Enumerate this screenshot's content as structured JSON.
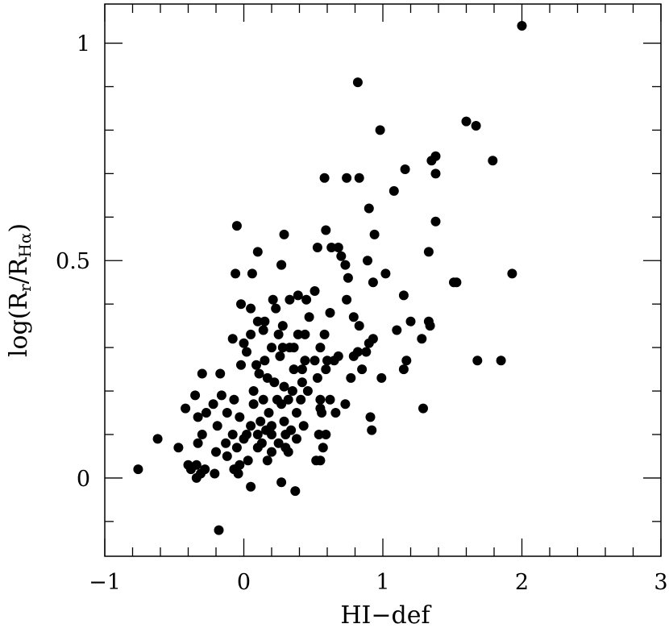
{
  "chart_data": {
    "type": "scatter",
    "xlabel": "HI−def",
    "ylabel": {
      "base": "log(R",
      "sub1": "r",
      "mid": "/R",
      "sub2": "Hα",
      "end": ")"
    },
    "xlim": [
      -1,
      3
    ],
    "ylim": [
      -0.18,
      1.09
    ],
    "x_ticks_major": [
      -1,
      0,
      1,
      2,
      3
    ],
    "x_tick_labels": [
      "−1",
      "0",
      "1",
      "2",
      "3"
    ],
    "y_ticks_major": [
      0,
      0.5,
      1
    ],
    "y_tick_labels": [
      "0",
      "0.5",
      "1"
    ],
    "grid": false,
    "series": [
      {
        "marker_color": "#000000",
        "points": [
          [
            2.0,
            1.04
          ],
          [
            0.82,
            0.91
          ],
          [
            0.98,
            0.8
          ],
          [
            1.6,
            0.82
          ],
          [
            1.67,
            0.81
          ],
          [
            1.38,
            0.74
          ],
          [
            1.35,
            0.73
          ],
          [
            1.79,
            0.73
          ],
          [
            1.38,
            0.7
          ],
          [
            1.16,
            0.71
          ],
          [
            0.58,
            0.69
          ],
          [
            0.74,
            0.69
          ],
          [
            0.83,
            0.69
          ],
          [
            1.08,
            0.66
          ],
          [
            0.9,
            0.62
          ],
          [
            1.38,
            0.59
          ],
          [
            -0.05,
            0.58
          ],
          [
            0.59,
            0.57
          ],
          [
            0.29,
            0.56
          ],
          [
            0.94,
            0.56
          ],
          [
            0.68,
            0.53
          ],
          [
            0.63,
            0.53
          ],
          [
            0.53,
            0.53
          ],
          [
            0.1,
            0.52
          ],
          [
            1.33,
            0.52
          ],
          [
            0.7,
            0.51
          ],
          [
            0.73,
            0.49
          ],
          [
            0.89,
            0.5
          ],
          [
            0.27,
            0.49
          ],
          [
            0.27,
            0.49
          ],
          [
            0.06,
            0.47
          ],
          [
            -0.06,
            0.47
          ],
          [
            1.02,
            0.47
          ],
          [
            1.93,
            0.47
          ],
          [
            0.75,
            0.46
          ],
          [
            0.93,
            0.45
          ],
          [
            1.51,
            0.45
          ],
          [
            1.53,
            0.45
          ],
          [
            0.51,
            0.43
          ],
          [
            0.39,
            0.42
          ],
          [
            0.21,
            0.41
          ],
          [
            0.33,
            0.41
          ],
          [
            0.45,
            0.41
          ],
          [
            0.74,
            0.41
          ],
          [
            1.15,
            0.42
          ],
          [
            -0.02,
            0.4
          ],
          [
            0.23,
            0.39
          ],
          [
            0.05,
            0.39
          ],
          [
            0.62,
            0.38
          ],
          [
            0.79,
            0.37
          ],
          [
            0.47,
            0.37
          ],
          [
            1.2,
            0.36
          ],
          [
            1.33,
            0.36
          ],
          [
            1.34,
            0.35
          ],
          [
            0.1,
            0.36
          ],
          [
            0.15,
            0.36
          ],
          [
            0.28,
            0.35
          ],
          [
            0.83,
            0.35
          ],
          [
            1.1,
            0.34
          ],
          [
            0.14,
            0.34
          ],
          [
            0.25,
            0.33
          ],
          [
            0.39,
            0.33
          ],
          [
            0.44,
            0.33
          ],
          [
            0.05,
            0.33
          ],
          [
            0.58,
            0.33
          ],
          [
            -0.08,
            0.32
          ],
          [
            0.93,
            0.32
          ],
          [
            0.9,
            0.31
          ],
          [
            1.28,
            0.32
          ],
          [
            0.0,
            0.31
          ],
          [
            0.2,
            0.3
          ],
          [
            0.28,
            0.3
          ],
          [
            0.33,
            0.3
          ],
          [
            0.36,
            0.3
          ],
          [
            0.55,
            0.3
          ],
          [
            0.88,
            0.29
          ],
          [
            0.82,
            0.29
          ],
          [
            0.79,
            0.28
          ],
          [
            0.68,
            0.28
          ],
          [
            0.02,
            0.29
          ],
          [
            0.15,
            0.27
          ],
          [
            0.26,
            0.28
          ],
          [
            0.44,
            0.27
          ],
          [
            0.51,
            0.27
          ],
          [
            0.6,
            0.27
          ],
          [
            0.65,
            0.27
          ],
          [
            1.17,
            0.27
          ],
          [
            1.68,
            0.27
          ],
          [
            1.85,
            0.27
          ],
          [
            -0.02,
            0.26
          ],
          [
            0.09,
            0.26
          ],
          [
            0.36,
            0.25
          ],
          [
            0.42,
            0.25
          ],
          [
            0.59,
            0.25
          ],
          [
            0.85,
            0.25
          ],
          [
            1.15,
            0.25
          ],
          [
            -0.3,
            0.24
          ],
          [
            -0.17,
            0.24
          ],
          [
            0.11,
            0.24
          ],
          [
            0.17,
            0.23
          ],
          [
            0.42,
            0.22
          ],
          [
            0.53,
            0.23
          ],
          [
            0.77,
            0.23
          ],
          [
            0.99,
            0.23
          ],
          [
            0.22,
            0.22
          ],
          [
            0.29,
            0.21
          ],
          [
            0.07,
            0.2
          ],
          [
            0.35,
            0.2
          ],
          [
            0.46,
            0.2
          ],
          [
            -0.16,
            0.19
          ],
          [
            -0.07,
            0.18
          ],
          [
            0.14,
            0.18
          ],
          [
            0.24,
            0.18
          ],
          [
            0.32,
            0.18
          ],
          [
            0.41,
            0.18
          ],
          [
            0.55,
            0.18
          ],
          [
            0.62,
            0.18
          ],
          [
            -0.35,
            0.19
          ],
          [
            -0.22,
            0.17
          ],
          [
            0.07,
            0.17
          ],
          [
            0.27,
            0.17
          ],
          [
            0.55,
            0.16
          ],
          [
            0.73,
            0.17
          ],
          [
            0.91,
            0.14
          ],
          [
            1.29,
            0.16
          ],
          [
            -0.42,
            0.16
          ],
          [
            -0.27,
            0.15
          ],
          [
            -0.12,
            0.15
          ],
          [
            0.18,
            0.15
          ],
          [
            0.38,
            0.15
          ],
          [
            0.56,
            0.15
          ],
          [
            0.66,
            0.15
          ],
          [
            -0.33,
            0.14
          ],
          [
            -0.03,
            0.14
          ],
          [
            0.12,
            0.13
          ],
          [
            0.2,
            0.12
          ],
          [
            0.29,
            0.13
          ],
          [
            0.43,
            0.12
          ],
          [
            -0.19,
            0.12
          ],
          [
            0.05,
            0.12
          ],
          [
            0.16,
            0.11
          ],
          [
            0.34,
            0.11
          ],
          [
            0.92,
            0.11
          ],
          [
            -0.3,
            0.1
          ],
          [
            -0.08,
            0.1
          ],
          [
            0.02,
            0.1
          ],
          [
            0.1,
            0.1
          ],
          [
            0.2,
            0.1
          ],
          [
            0.3,
            0.1
          ],
          [
            0.38,
            0.09
          ],
          [
            0.54,
            0.1
          ],
          [
            0.59,
            0.1
          ],
          [
            -0.62,
            0.09
          ],
          [
            -0.33,
            0.08
          ],
          [
            -0.13,
            0.08
          ],
          [
            0.0,
            0.09
          ],
          [
            0.13,
            0.08
          ],
          [
            0.25,
            0.08
          ],
          [
            -0.47,
            0.07
          ],
          [
            -0.05,
            0.07
          ],
          [
            0.1,
            0.07
          ],
          [
            0.3,
            0.07
          ],
          [
            0.57,
            0.07
          ],
          [
            -0.2,
            0.06
          ],
          [
            0.2,
            0.06
          ],
          [
            0.32,
            0.06
          ],
          [
            -0.12,
            0.05
          ],
          [
            0.03,
            0.04
          ],
          [
            0.17,
            0.04
          ],
          [
            0.55,
            0.04
          ],
          [
            0.52,
            0.04
          ],
          [
            -0.4,
            0.03
          ],
          [
            -0.34,
            0.03
          ],
          [
            -0.03,
            0.03
          ],
          [
            -0.76,
            0.02
          ],
          [
            -0.38,
            0.02
          ],
          [
            -0.28,
            0.02
          ],
          [
            -0.07,
            0.02
          ],
          [
            -0.31,
            0.01
          ],
          [
            -0.21,
            0.01
          ],
          [
            -0.04,
            0.01
          ],
          [
            -0.34,
            0.0
          ],
          [
            0.27,
            -0.01
          ],
          [
            0.05,
            -0.02
          ],
          [
            0.37,
            -0.03
          ],
          [
            -0.18,
            -0.12
          ]
        ]
      }
    ]
  }
}
